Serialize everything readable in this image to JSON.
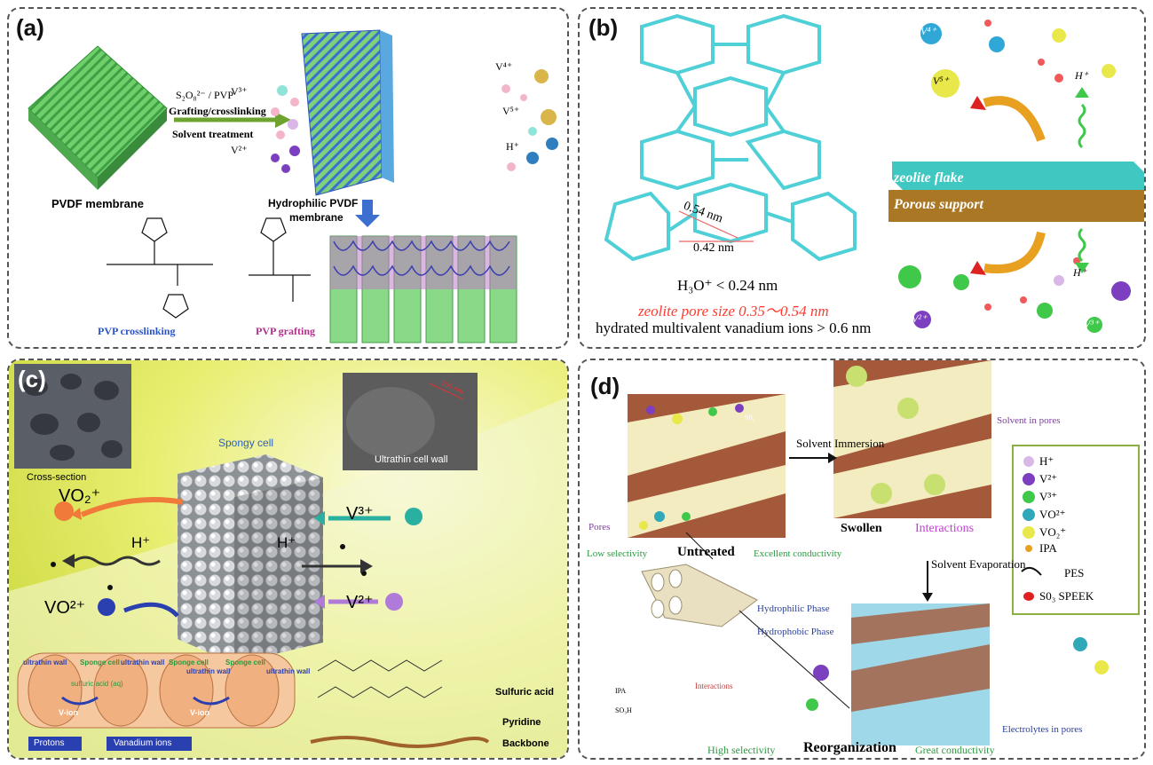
{
  "panel_a": {
    "label": "(a)",
    "reagent": "S₂O₈²⁻ / PVP",
    "step1": "Grafting/crosslinking",
    "step2": "Solvent treatment",
    "pvdf": "PVDF membrane",
    "hydrophilic": "Hydrophilic PVDF",
    "hydrophilic2": "membrane",
    "pvp_cross": "PVP crosslinking",
    "pvp_graft": "PVP grafting",
    "ions": [
      "V³⁺",
      "V²⁺",
      "V⁴⁺",
      "V⁵⁺",
      "H⁺"
    ]
  },
  "panel_b": {
    "label": "(b)",
    "d1": "0.54 nm",
    "d2": "0.42 nm",
    "h3o": "H₃O⁺ < 0.24 nm",
    "zeolite_size": "zeolite pore size 0.35〜0.54 nm",
    "hydrated": "hydrated multivalent vanadium ions > 0.6 nm",
    "flake": "zeolite flake",
    "support": "Porous support",
    "ions_top": [
      "V⁴⁺",
      "V⁵⁺",
      "H⁺"
    ],
    "ions_bottom": [
      "H⁺",
      "V²⁺",
      "V³⁺"
    ],
    "colors": {
      "framework": "#4fd0d6",
      "red_text": "#ff3b2f",
      "flake": "#3fc7c2",
      "support": "#b8862b"
    }
  },
  "panel_c": {
    "label": "(c)",
    "cross_section": "Cross-section",
    "spongy": "Spongy cell",
    "ultrathin_wall": "Ultrathin cell wall",
    "scale": "100 nm",
    "ions_left": [
      "VO₂⁺",
      "H⁺",
      "VO²⁺"
    ],
    "ions_right": [
      "V³⁺",
      "H⁺",
      "V²⁺"
    ],
    "bottom_labels": [
      "ultrathin wall",
      "Sponge cell",
      "ultrathin wall",
      "Sponge cell",
      "ultrathin wall",
      "Sponge cell",
      "ultrathin wall"
    ],
    "sulfuric": "sulfuric acid (aq)",
    "vion": "V-ion",
    "legend": [
      "Protons",
      "Vanadium ions"
    ],
    "chem_labels": [
      "Sulfuric acid",
      "Pyridine",
      "Backbone"
    ]
  },
  "panel_d": {
    "label": "(d)",
    "solvent_immersion": "Solvent Immersion",
    "solvent_in_pores": "Solvent in pores",
    "pores": "Pores",
    "low_sel": "Low selectivity",
    "untreated": "Untreated",
    "excellent": "Excellent conductivity",
    "swollen": "Swollen",
    "interactions": "Interactions",
    "solvent_evap": "Solvent Evaporation",
    "hydrophilic": "Hydrophilic Phase",
    "hydrophobic": "Hydrophobic Phase",
    "electrolytes": "Electrolytes in pores",
    "high_sel": "High selectivity",
    "reorg": "Reorganization",
    "great": "Great conductivity",
    "legend": [
      "H⁺",
      "V²⁺",
      "V³⁺",
      "VO²⁺",
      "VO₂⁺",
      "IPA",
      "PES",
      "S0₃ SPEEK"
    ],
    "chem_interactions": "Interactions",
    "so3": "S0₃",
    "so3h": "SO₃H",
    "ipa": "IPA"
  }
}
